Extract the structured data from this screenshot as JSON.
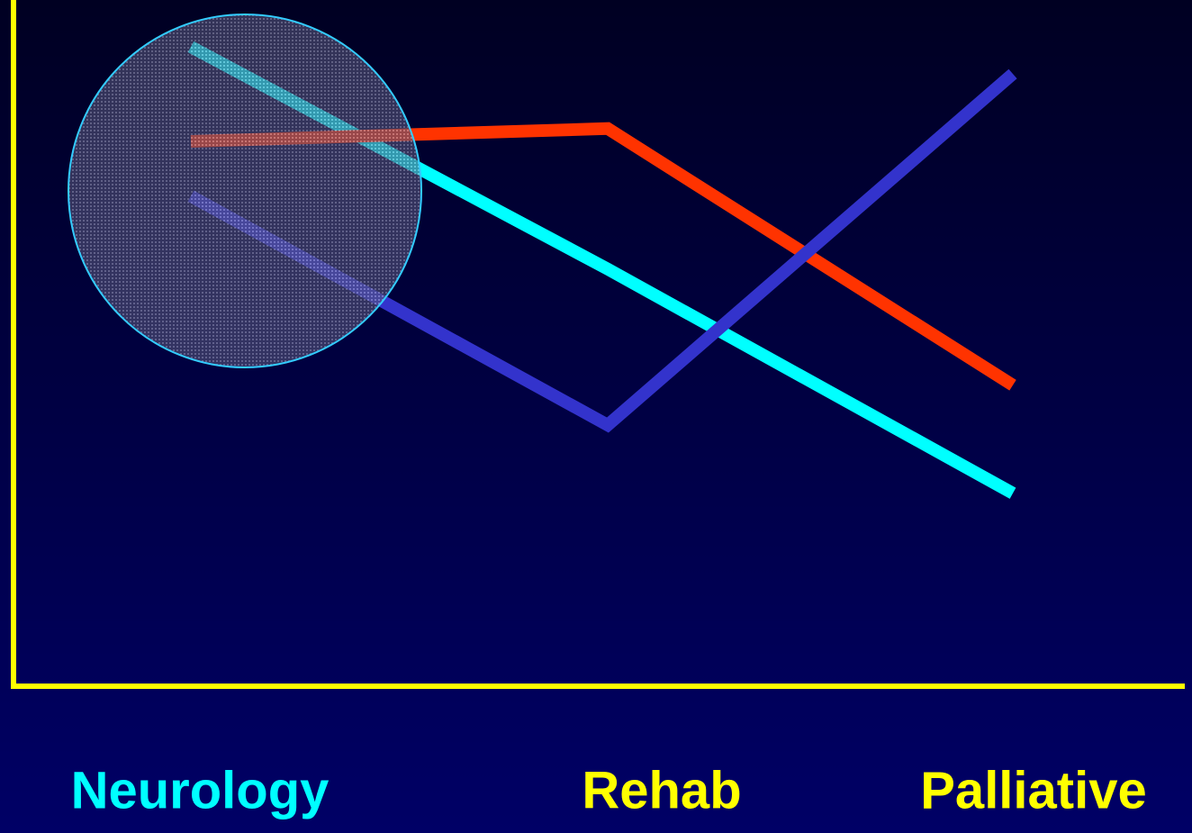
{
  "chart_data": {
    "type": "line",
    "categories": [
      "Neurology",
      "Rehab",
      "Palliative"
    ],
    "category_colors": [
      "#00ffff",
      "#ffff00",
      "#ffff00"
    ],
    "series": [
      {
        "color": "#00ffff",
        "values": [
          94.4,
          61.5,
          28.3
        ]
      },
      {
        "color": "#ff3300",
        "values": [
          80.4,
          82.3,
          44.3
        ]
      },
      {
        "color": "#3333cc",
        "values": [
          72.3,
          38.4,
          90.4
        ]
      }
    ],
    "ylim": [
      0,
      100
    ],
    "axis_color": "#ffff00"
  }
}
